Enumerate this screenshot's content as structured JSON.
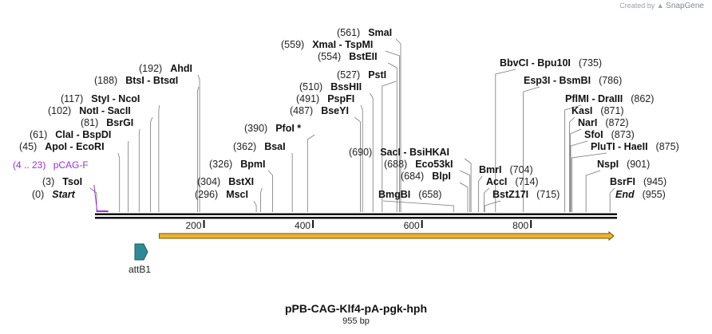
{
  "credit": {
    "prefix": "Created by",
    "brand": "SnapGene"
  },
  "map": {
    "name": "pPB-CAG-Klf4-pA-pgk-hph",
    "length_label": "955 bp",
    "length": 955,
    "ticks": [
      {
        "pos": 200,
        "label": "200"
      },
      {
        "pos": 400,
        "label": "400"
      },
      {
        "pos": 600,
        "label": "600"
      },
      {
        "pos": 800,
        "label": "800"
      }
    ],
    "features": [
      {
        "name": "attB1",
        "type": "att site",
        "color": "#2f8a96"
      }
    ],
    "orf": {
      "color": "#f0b030",
      "stroke": "#6b5a00"
    },
    "primer": {
      "name": "pCAG-F",
      "range": "(4 .. 23)",
      "start": 4,
      "end": 23,
      "color": "#9b30d9"
    }
  },
  "enzymes": [
    {
      "text": "(0)",
      "name": "Start",
      "pos": 0,
      "italic": true
    },
    {
      "text": "(3)",
      "name": "TsoI",
      "pos": 3
    },
    {
      "text": "(45)",
      "name": "ApoI - EcoRI",
      "pos": 45
    },
    {
      "text": "(61)",
      "name": "ClaI - BspDI",
      "pos": 61
    },
    {
      "text": "(81)",
      "name": "BsrGI",
      "pos": 81
    },
    {
      "text": "(102)",
      "name": "NotI - SacII",
      "pos": 102
    },
    {
      "text": "(117)",
      "name": "StyI - NcoI",
      "pos": 117
    },
    {
      "text": "(188)",
      "name": "BtsI - BtsαI",
      "pos": 188
    },
    {
      "text": "(192)",
      "name": "AhdI",
      "pos": 192
    },
    {
      "text": "(296)",
      "name": "MscI",
      "pos": 296
    },
    {
      "text": "(304)",
      "name": "BstXI",
      "pos": 304
    },
    {
      "text": "(326)",
      "name": "BpmI",
      "pos": 326
    },
    {
      "text": "(362)",
      "name": "BsaI",
      "pos": 362
    },
    {
      "text": "(390)",
      "name": "PfoI *",
      "pos": 390
    },
    {
      "text": "(487)",
      "name": "BseYI",
      "pos": 487
    },
    {
      "text": "(491)",
      "name": "PspFI",
      "pos": 491
    },
    {
      "text": "(510)",
      "name": "BssHII",
      "pos": 510
    },
    {
      "text": "(527)",
      "name": "PstI",
      "pos": 527
    },
    {
      "text": "(554)",
      "name": "BstEII",
      "pos": 554
    },
    {
      "text": "(559)",
      "name": "XmaI - TspMI",
      "pos": 559
    },
    {
      "text": "(561)",
      "name": "SmaI",
      "pos": 561
    },
    {
      "text": "(658)",
      "name": "BmgBI",
      "pos": 658
    },
    {
      "text": "(684)",
      "name": "BlpI",
      "pos": 684
    },
    {
      "text": "(688)",
      "name": "Eco53kI",
      "pos": 688
    },
    {
      "text": "(690)",
      "name": "SacI - BsiHKAI",
      "pos": 690
    },
    {
      "text": "(704)",
      "name": "BmrI",
      "pos": 704
    },
    {
      "text": "(714)",
      "name": "AccI",
      "pos": 714
    },
    {
      "text": "(715)",
      "name": "BstZ17I",
      "pos": 715
    },
    {
      "text": "(735)",
      "name": "BbvCI - Bpu10I",
      "pos": 735
    },
    {
      "text": "(786)",
      "name": "Esp3I - BsmBI",
      "pos": 786
    },
    {
      "text": "(862)",
      "name": "PflMI - DraIII",
      "pos": 862
    },
    {
      "text": "(871)",
      "name": "KasI",
      "pos": 871
    },
    {
      "text": "(872)",
      "name": "NarI",
      "pos": 872
    },
    {
      "text": "(873)",
      "name": "SfoI",
      "pos": 873
    },
    {
      "text": "(875)",
      "name": "PluTI - HaeII",
      "pos": 875
    },
    {
      "text": "(901)",
      "name": "NspI",
      "pos": 901
    },
    {
      "text": "(945)",
      "name": "BsrFI",
      "pos": 945
    },
    {
      "text": "(955)",
      "name": "End",
      "pos": 955,
      "italic": true
    }
  ]
}
